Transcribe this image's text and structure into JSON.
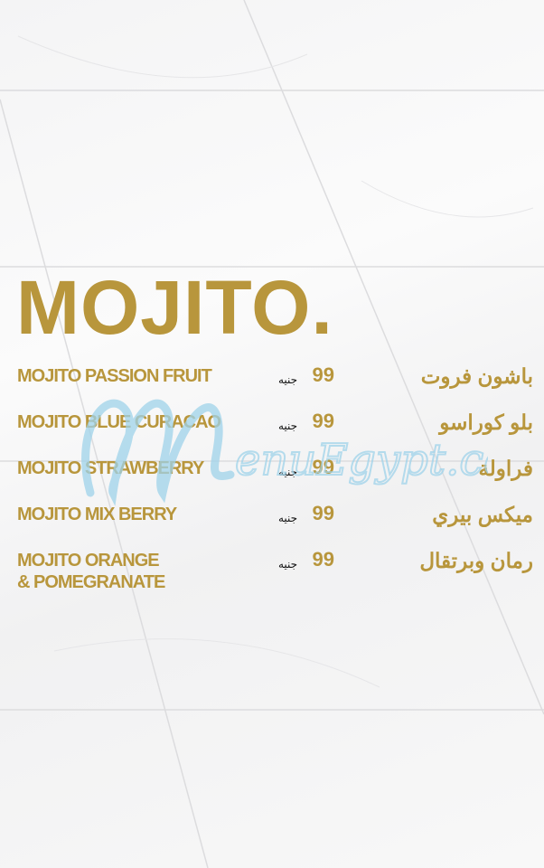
{
  "colors": {
    "accent": "#b8963c",
    "watermark": "#9fd3ea"
  },
  "menu": {
    "title": "MOJITO.",
    "items": [
      {
        "en": "MOJITO PASSION FRUIT",
        "price": "99",
        "currency": "جنيه",
        "ar": "باشون فروت"
      },
      {
        "en": "MOJITO BLUE CURACAO",
        "price": "99",
        "currency": "جنيه",
        "ar": "بلو كوراسو"
      },
      {
        "en": "MOJITO STRAWBERRY",
        "price": "99",
        "currency": "جنيه",
        "ar": "فراولة"
      },
      {
        "en": "MOJITO MIX BERRY",
        "price": "99",
        "currency": "جنيه",
        "ar": "ميكس بيري"
      },
      {
        "en": "MOJITO ORANGE\n& POMEGRANATE",
        "price": "99",
        "currency": "جنيه",
        "ar": "رمان وبرتقال"
      }
    ]
  },
  "watermark": {
    "text": "MenuEgypt.com"
  }
}
